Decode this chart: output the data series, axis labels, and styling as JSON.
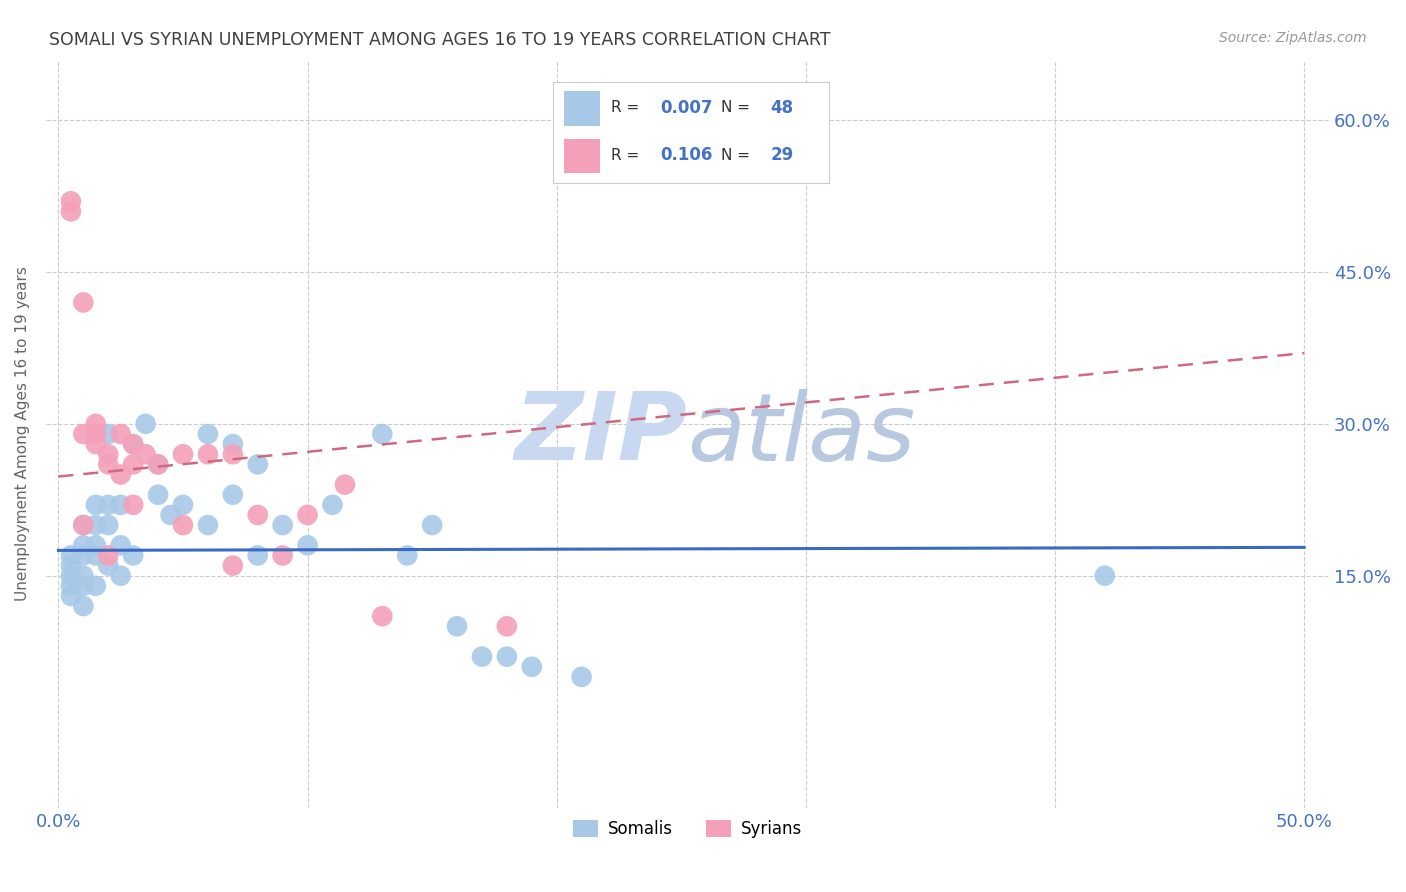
{
  "title": "SOMALI VS SYRIAN UNEMPLOYMENT AMONG AGES 16 TO 19 YEARS CORRELATION CHART",
  "source": "Source: ZipAtlas.com",
  "ylabel": "Unemployment Among Ages 16 to 19 years",
  "xlim": [
    -0.005,
    0.51
  ],
  "ylim": [
    -0.08,
    0.66
  ],
  "xtick_positions": [
    0.0,
    0.1,
    0.2,
    0.3,
    0.4,
    0.5
  ],
  "xtick_labels": [
    "0.0%",
    "",
    "",
    "",
    "",
    "50.0%"
  ],
  "ytick_vals": [
    0.15,
    0.3,
    0.45,
    0.6
  ],
  "ytick_labels": [
    "15.0%",
    "30.0%",
    "45.0%",
    "60.0%"
  ],
  "somali_color": "#a8c8e8",
  "syrian_color": "#f4a0b8",
  "trendline_somali_color": "#3a6bc4",
  "trendline_syrian_color": "#d06880",
  "watermark_color": "#c8d8f0",
  "background_color": "#ffffff",
  "grid_color": "#cccccc",
  "title_color": "#404040",
  "axis_label_color": "#4472c4",
  "somali_points_x": [
    0.005,
    0.005,
    0.005,
    0.005,
    0.005,
    0.01,
    0.01,
    0.01,
    0.01,
    0.01,
    0.01,
    0.015,
    0.015,
    0.015,
    0.015,
    0.015,
    0.02,
    0.02,
    0.02,
    0.02,
    0.025,
    0.025,
    0.025,
    0.03,
    0.03,
    0.035,
    0.04,
    0.04,
    0.045,
    0.05,
    0.06,
    0.06,
    0.07,
    0.07,
    0.08,
    0.08,
    0.09,
    0.1,
    0.11,
    0.13,
    0.14,
    0.15,
    0.16,
    0.17,
    0.18,
    0.19,
    0.21,
    0.42
  ],
  "somali_points_y": [
    0.17,
    0.16,
    0.15,
    0.14,
    0.13,
    0.2,
    0.18,
    0.17,
    0.15,
    0.14,
    0.12,
    0.22,
    0.2,
    0.18,
    0.17,
    0.14,
    0.29,
    0.22,
    0.2,
    0.16,
    0.22,
    0.18,
    0.15,
    0.28,
    0.17,
    0.3,
    0.26,
    0.23,
    0.21,
    0.22,
    0.29,
    0.2,
    0.28,
    0.23,
    0.26,
    0.17,
    0.2,
    0.18,
    0.22,
    0.29,
    0.17,
    0.2,
    0.1,
    0.07,
    0.07,
    0.06,
    0.05,
    0.15
  ],
  "syrian_points_x": [
    0.005,
    0.005,
    0.01,
    0.01,
    0.01,
    0.015,
    0.015,
    0.015,
    0.02,
    0.02,
    0.02,
    0.025,
    0.025,
    0.03,
    0.03,
    0.03,
    0.035,
    0.04,
    0.05,
    0.05,
    0.06,
    0.07,
    0.07,
    0.08,
    0.09,
    0.1,
    0.115,
    0.13,
    0.18
  ],
  "syrian_points_y": [
    0.52,
    0.51,
    0.42,
    0.29,
    0.2,
    0.3,
    0.29,
    0.28,
    0.27,
    0.26,
    0.17,
    0.29,
    0.25,
    0.28,
    0.26,
    0.22,
    0.27,
    0.26,
    0.27,
    0.2,
    0.27,
    0.27,
    0.16,
    0.21,
    0.17,
    0.21,
    0.24,
    0.11,
    0.1
  ],
  "somali_trend_x": [
    0.0,
    0.5
  ],
  "somali_trend_y": [
    0.175,
    0.178
  ],
  "syrian_trend_x": [
    0.0,
    0.5
  ],
  "syrian_trend_y": [
    0.248,
    0.37
  ]
}
